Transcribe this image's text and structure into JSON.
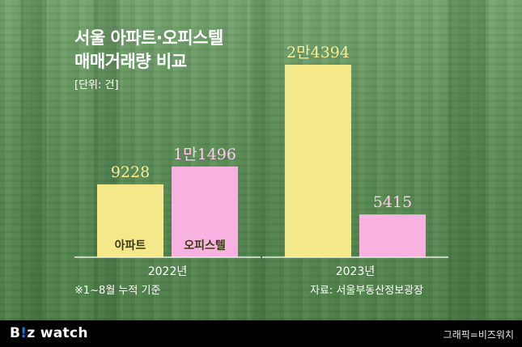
{
  "title_line1": "서울 아파트·오피스텔",
  "title_line2": "매매거래량 비교",
  "unit": "[단위: 건]",
  "footnote_left": "※1~8월 누적 기준",
  "footnote_right": "자료: 서울부동산정보광장",
  "brand": {
    "logo_b": "B",
    "logo_i": "!",
    "logo_z": "z",
    "logo_rest": " watch"
  },
  "credit": "그래픽=비즈워치",
  "colors": {
    "apartment": "#f3e88a",
    "officetel": "#f8b2e0",
    "value_apartment": "#f6ec92",
    "value_officetel": "#ffc9ec"
  },
  "chart_data": {
    "type": "bar",
    "categories": [
      "2022년",
      "2023년"
    ],
    "series": [
      {
        "name": "아파트",
        "values": [
          9228,
          24394
        ],
        "labels": [
          "9228",
          "2만4394"
        ]
      },
      {
        "name": "오피스텔",
        "values": [
          11496,
          5415
        ],
        "labels": [
          "1만1496",
          "5415"
        ]
      }
    ],
    "ylim": [
      0,
      24394
    ]
  }
}
